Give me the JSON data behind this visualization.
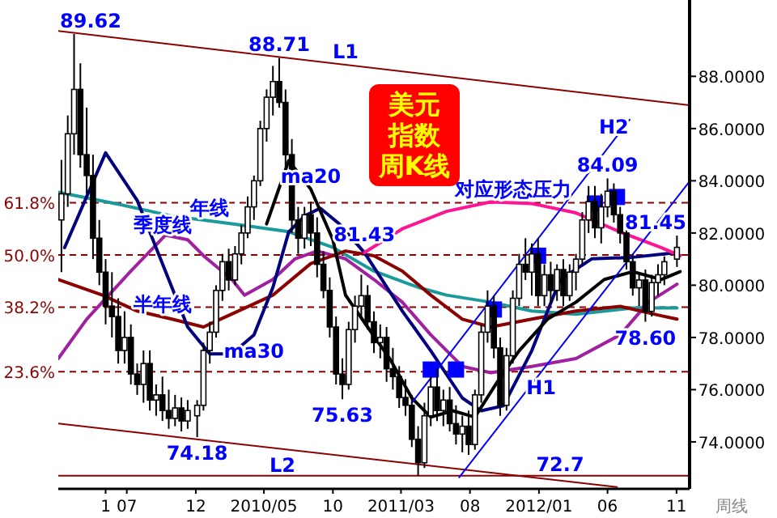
{
  "chart_data": {
    "type": "candlestick",
    "title": "美元指数周K线",
    "xlabel": "周线",
    "x": [
      "2009-02-06",
      "2009-02-20",
      "2009-03-06",
      "2009-03-20",
      "2009-04-03",
      "2009-04-17",
      "2009-05-01",
      "2009-05-15",
      "2009-05-29",
      "2009-06-12",
      "2009-06-26",
      "2009-07-10",
      "2009-07-24",
      "2009-08-07",
      "2009-08-21",
      "2009-09-04",
      "2009-09-18",
      "2009-10-02",
      "2009-10-16",
      "2009-10-30",
      "2009-11-13",
      "2009-12-04",
      "2009-12-18",
      "2010-01-01",
      "2010-01-15",
      "2010-01-29",
      "2010-02-12",
      "2010-02-26",
      "2010-03-12",
      "2010-03-26",
      "2010-04-09",
      "2010-04-23",
      "2010-05-07",
      "2010-05-21",
      "2010-06-04",
      "2010-06-18",
      "2010-07-02",
      "2010-07-16",
      "2010-07-30",
      "2010-08-13",
      "2010-08-27",
      "2010-09-10",
      "2010-09-24",
      "2010-10-08",
      "2010-10-22",
      "2010-11-05",
      "2010-11-19",
      "2010-12-03",
      "2010-12-17",
      "2010-12-31",
      "2011-01-14",
      "2011-01-28",
      "2011-02-11",
      "2011-02-25",
      "2011-03-11",
      "2011-03-25",
      "2011-04-08",
      "2011-04-22",
      "2011-05-06",
      "2011-05-20",
      "2011-06-03",
      "2011-06-17",
      "2011-07-01",
      "2011-07-15",
      "2011-07-29",
      "2011-08-12",
      "2011-08-26",
      "2011-09-09",
      "2011-09-23",
      "2011-10-07",
      "2011-10-21",
      "2011-11-04",
      "2011-11-18",
      "2011-12-02",
      "2011-12-16",
      "2011-12-30",
      "2012-01-13",
      "2012-01-27",
      "2012-02-10",
      "2012-02-24",
      "2012-03-09",
      "2012-03-23",
      "2012-04-06",
      "2012-04-20",
      "2012-05-04",
      "2012-05-18",
      "2012-06-01",
      "2012-06-15",
      "2012-06-29",
      "2012-07-13",
      "2012-07-27",
      "2012-08-10",
      "2012-08-24",
      "2012-09-07",
      "2012-09-21",
      "2012-10-05",
      "2012-11-02"
    ],
    "ohlc": [
      [
        82.5,
        84.8,
        80.5,
        83.5
      ],
      [
        83.5,
        86.5,
        83,
        85.8
      ],
      [
        85.8,
        89.62,
        85,
        87.5
      ],
      [
        87.5,
        88.5,
        84.5,
        85
      ],
      [
        85,
        86.8,
        83.5,
        84.2
      ],
      [
        84.2,
        85,
        81,
        81.8
      ],
      [
        81.8,
        82.5,
        80,
        80.5
      ],
      [
        80.5,
        81,
        78.5,
        79.2
      ],
      [
        79.2,
        80.5,
        78,
        78.8
      ],
      [
        78.8,
        79.5,
        77,
        77.5
      ],
      [
        77.5,
        79,
        77,
        78
      ],
      [
        78,
        78.5,
        76.2,
        76.6
      ],
      [
        76.6,
        77,
        75.8,
        76.2
      ],
      [
        76.2,
        77.5,
        75.5,
        77
      ],
      [
        77,
        77.5,
        75.2,
        75.6
      ],
      [
        75.6,
        76.2,
        75,
        75.8
      ],
      [
        75.8,
        76.5,
        74.8,
        75.2
      ],
      [
        75.2,
        76,
        74.5,
        74.9
      ],
      [
        74.9,
        75.8,
        74.6,
        75.3
      ],
      [
        75.3,
        75.7,
        74.4,
        74.8
      ],
      [
        74.8,
        75.6,
        74.5,
        75.2
      ],
      [
        75,
        75.6,
        74.18,
        75.4
      ],
      [
        75.4,
        77.8,
        75.2,
        77.5
      ],
      [
        77.5,
        78.6,
        77,
        78.2
      ],
      [
        78.2,
        80,
        78,
        79.8
      ],
      [
        79.8,
        81.2,
        79.4,
        80.9
      ],
      [
        80.9,
        81.4,
        79.8,
        80.2
      ],
      [
        80.2,
        81.5,
        80,
        81.2
      ],
      [
        81.2,
        82.3,
        80.8,
        82
      ],
      [
        82,
        83.4,
        81.8,
        83
      ],
      [
        83,
        84.2,
        82.5,
        84
      ],
      [
        84,
        86.3,
        83.8,
        86
      ],
      [
        86,
        87.5,
        85.5,
        87.2
      ],
      [
        87.2,
        88.4,
        86.5,
        87.8
      ],
      [
        87.8,
        88.71,
        86.8,
        87
      ],
      [
        87,
        87.5,
        84.5,
        85
      ],
      [
        85,
        85.6,
        82,
        82.5
      ],
      [
        82.5,
        83,
        81.2,
        81.8
      ],
      [
        81.8,
        83,
        81.4,
        82.7
      ],
      [
        82.7,
        83.2,
        81.5,
        82
      ],
      [
        82,
        82.6,
        80.3,
        80.8
      ],
      [
        80.8,
        81.3,
        79.5,
        79.8
      ],
      [
        79.8,
        80.3,
        78,
        78.4
      ],
      [
        78.4,
        78.8,
        76.2,
        76.6
      ],
      [
        76.6,
        77.2,
        75.63,
        76.2
      ],
      [
        76.2,
        78.6,
        76,
        78.3
      ],
      [
        78.3,
        79.6,
        77.8,
        79.2
      ],
      [
        79.2,
        80.4,
        78.8,
        79.6
      ],
      [
        79.6,
        80,
        78.3,
        78.6
      ],
      [
        78.6,
        79,
        77.4,
        77.8
      ],
      [
        77.8,
        78.5,
        77.2,
        78
      ],
      [
        78,
        78.4,
        76.3,
        76.8
      ],
      [
        76.8,
        77.6,
        76,
        76.5
      ],
      [
        76.5,
        76.9,
        75.3,
        75.7
      ],
      [
        75.7,
        76.4,
        75,
        75.4
      ],
      [
        75.4,
        75.8,
        73.8,
        74.1
      ],
      [
        74.1,
        74.6,
        72.7,
        73.2
      ],
      [
        73.2,
        75.5,
        73,
        75
      ],
      [
        75,
        76.5,
        74.6,
        76.1
      ],
      [
        76.1,
        76.8,
        74.8,
        75.2
      ],
      [
        75.2,
        76,
        74.6,
        75.6
      ],
      [
        75.6,
        76.1,
        74.4,
        74.7
      ],
      [
        74.7,
        75.4,
        73.9,
        74.3
      ],
      [
        74.3,
        75,
        73.6,
        74.6
      ],
      [
        74.6,
        75.2,
        73.5,
        73.9
      ],
      [
        73.9,
        76,
        73.7,
        75.8
      ],
      [
        75.8,
        78.5,
        75.5,
        78.2
      ],
      [
        78.2,
        79.8,
        77.8,
        79.2
      ],
      [
        79.2,
        79.6,
        77.2,
        77.6
      ],
      [
        77.6,
        78,
        75,
        75.4
      ],
      [
        75.4,
        77.6,
        75.2,
        77.3
      ],
      [
        77.3,
        79.8,
        77,
        79.5
      ],
      [
        79.5,
        81.2,
        79.2,
        80.8
      ],
      [
        80.8,
        81.8,
        80.2,
        80.5
      ],
      [
        80.5,
        81.6,
        79.6,
        81.2
      ],
      [
        81.2,
        81.8,
        79.2,
        79.6
      ],
      [
        79.6,
        80.8,
        79.2,
        80.4
      ],
      [
        80.4,
        80.9,
        79.3,
        79.8
      ],
      [
        79.8,
        80.8,
        79.4,
        80.6
      ],
      [
        80.6,
        81,
        79.2,
        79.6
      ],
      [
        79.6,
        80.8,
        79.4,
        80.5
      ],
      [
        80.5,
        81.2,
        79.8,
        81
      ],
      [
        81,
        82.8,
        80.8,
        82.5
      ],
      [
        82.5,
        83.8,
        82,
        83.2
      ],
      [
        83.2,
        83.8,
        81.8,
        82.2
      ],
      [
        82.2,
        83.5,
        81.6,
        83
      ],
      [
        83,
        84.09,
        82.6,
        83.6
      ],
      [
        83.6,
        83.9,
        82.4,
        82.7
      ],
      [
        82.7,
        83,
        81.6,
        82
      ],
      [
        82,
        82.3,
        80.6,
        80.9
      ],
      [
        80.9,
        81.2,
        79.6,
        79.9
      ],
      [
        79.9,
        80.5,
        79.2,
        80.2
      ],
      [
        80.2,
        80.6,
        78.6,
        79
      ],
      [
        79,
        80.4,
        78.8,
        80.1
      ],
      [
        80.1,
        80.8,
        79.6,
        80.4
      ],
      [
        80.4,
        81.1,
        80,
        80.9
      ],
      [
        81,
        81.9,
        80.7,
        81.45
      ]
    ],
    "series": [
      {
        "type": "line",
        "color": "#1a9a9a",
        "x": [
          "2009-01-30",
          "2009-06-05",
          "2009-10-09",
          "2010-02-19",
          "2010-06-25",
          "2010-10-01",
          "2010-12-31",
          "2011-04-08",
          "2011-06-10",
          "2011-09-16",
          "2011-12-16",
          "2012-03-23",
          "2012-07-27",
          "2012-11-02"
        ],
        "values": [
          83.56,
          83.13,
          82.65,
          82.35,
          82.05,
          81.45,
          80.54,
          79.92,
          79.62,
          79.35,
          79.01,
          78.89,
          79.13,
          79.13
        ]
      },
      {
        "type": "line",
        "color": "#a0209f",
        "x": [
          "2009-01-30",
          "2009-04-03",
          "2009-07-10",
          "2009-09-25",
          "2009-11-13",
          "2009-12-18",
          "2010-02-19",
          "2010-03-19",
          "2010-05-21",
          "2010-07-09",
          "2010-08-27",
          "2010-10-29",
          "2010-12-31",
          "2011-03-04",
          "2011-05-06",
          "2011-07-15",
          "2011-09-16",
          "2011-12-16",
          "2012-03-23",
          "2012-06-29",
          "2012-08-31",
          "2012-11-02"
        ],
        "values": [
          77.19,
          78.7,
          80.54,
          81.92,
          81.74,
          81.13,
          80.22,
          79.62,
          80.22,
          81.01,
          81.31,
          81.01,
          80.22,
          79.35,
          78.1,
          76.89,
          76.65,
          76.89,
          77.19,
          78.1,
          79.35,
          80.04
        ]
      },
      {
        "type": "line",
        "color": "#8b0000",
        "x": [
          "2009-01-30",
          "2009-05-08",
          "2009-07-24",
          "2009-10-09",
          "2009-12-18",
          "2010-03-05",
          "2010-05-21",
          "2010-08-13",
          "2010-10-29",
          "2010-12-31",
          "2011-03-04",
          "2011-05-06",
          "2011-07-15",
          "2011-09-16",
          "2011-12-16",
          "2012-03-23",
          "2012-06-29",
          "2012-09-28",
          "2012-11-02"
        ],
        "values": [
          80.22,
          79.62,
          79.01,
          78.7,
          78.4,
          79.01,
          79.62,
          80.83,
          81.31,
          81.13,
          80.54,
          79.62,
          78.7,
          78.4,
          78.7,
          79.01,
          79.19,
          78.83,
          78.7
        ]
      },
      {
        "type": "line",
        "color": "#000080",
        "x": [
          "2009-02-13",
          "2009-05-15",
          "2009-07-24",
          "2009-09-11",
          "2009-11-13",
          "2010-01-01",
          "2010-02-19",
          "2010-04-09",
          "2010-05-21",
          "2010-06-25",
          "2010-07-30",
          "2010-09-03",
          "2010-10-15",
          "2010-12-10",
          "2011-03-04",
          "2011-05-06",
          "2011-07-15",
          "2011-08-26",
          "2011-10-14",
          "2011-12-16",
          "2012-02-17",
          "2012-04-27",
          "2012-07-27",
          "2012-11-02"
        ],
        "values": [
          81.44,
          85.07,
          83.25,
          81.13,
          78.4,
          77.37,
          77.37,
          78.1,
          79.92,
          82.04,
          82.65,
          82.95,
          82.35,
          81.25,
          79.01,
          77.49,
          75.68,
          75.19,
          75.38,
          77.49,
          80.22,
          81.01,
          81.07,
          81.25
        ]
      },
      {
        "type": "line",
        "color": "#000000",
        "x": [
          "2010-05-07",
          "2010-06-25",
          "2010-08-13",
          "2010-10-01",
          "2010-10-29",
          "2010-12-17",
          "2011-02-04",
          "2011-03-25",
          "2011-05-06",
          "2011-06-24",
          "2011-08-12",
          "2011-09-30",
          "2011-11-18",
          "2012-01-20",
          "2012-03-23",
          "2012-05-25",
          "2012-07-27",
          "2012-09-28",
          "2012-11-09"
        ],
        "values": [
          82.35,
          84.77,
          83.68,
          81.74,
          79.62,
          78.4,
          77.19,
          75.68,
          74.95,
          75.19,
          74.95,
          76.28,
          77.49,
          78.7,
          79.35,
          80.22,
          80.52,
          80.22,
          80.52
        ]
      },
      {
        "type": "line",
        "color": "#ff1493",
        "x": [
          "2010-12-10",
          "2011-03-04",
          "2011-06-10",
          "2011-09-16",
          "2011-12-16",
          "2012-03-23",
          "2012-06-29",
          "2012-09-28",
          "2012-11-09"
        ],
        "values": [
          81.25,
          82.16,
          82.83,
          83.19,
          83.13,
          82.77,
          82.04,
          81.44,
          81.13
        ]
      },
      {
        "type": "line",
        "color": "#8b0000",
        "x": [
          "2009-01-30",
          "2012-11-30"
        ],
        "values": [
          89.74,
          86.89
        ]
      },
      {
        "type": "line",
        "color": "#8b0000",
        "x": [
          "2009-01-30",
          "2012-06-22"
        ],
        "values": [
          74.7,
          72.27
        ]
      },
      {
        "type": "line",
        "color": "#0000ff",
        "x": [
          "2011-07-08",
          "2012-11-30"
        ],
        "values": [
          72.64,
          83.98
        ]
      },
      {
        "type": "line",
        "color": "#0000ff",
        "x": [
          "2011-03-25",
          "2012-07-20"
        ],
        "values": [
          75.5,
          86.34
        ]
      },
      {
        "type": "scatter",
        "color": "#0000ff",
        "marker": "square",
        "x": [
          "2011-05-06",
          "2011-07-01",
          "2011-09-23",
          "2011-12-30",
          "2012-05-04",
          "2012-06-22"
        ],
        "values": [
          76.77,
          76.77,
          79.07,
          81.13,
          83.13,
          83.38
        ]
      }
    ],
    "ref_lines": [
      {
        "axis": "y",
        "value": 83.16,
        "color": "#8b0000",
        "line_style": "dashed"
      },
      {
        "axis": "y",
        "value": 81.16,
        "color": "#8b0000",
        "line_style": "dashed"
      },
      {
        "axis": "y",
        "value": 79.16,
        "color": "#8b0000",
        "line_style": "dashed"
      },
      {
        "axis": "y",
        "value": 76.69,
        "color": "#8b0000",
        "line_style": "dashed"
      },
      {
        "axis": "y",
        "value": 72.7,
        "label": "72.7",
        "color": "#8b0000",
        "line_style": "solid"
      }
    ],
    "annotations": [
      {
        "text": "89.62",
        "x": "2009-03-06",
        "y": 89.62
      },
      {
        "text": "88.71",
        "x": "2010-06-04",
        "y": 88.71
      },
      {
        "text": "74.18",
        "x": "2009-12-04",
        "y": 74.18
      },
      {
        "text": "75.63",
        "x": "2010-10-22",
        "y": 75.63
      },
      {
        "text": "84.09",
        "x": "2012-06-01",
        "y": 84.09
      },
      {
        "text": "78.60",
        "x": "2012-08-24",
        "y": 78.6
      },
      {
        "text": "81.45",
        "x": "2012-11-02",
        "y": 81.45
      },
      {
        "text": "81.43",
        "x": "2010-12-10",
        "y": 81.43
      },
      {
        "text": "61.8%",
        "x": "2009-01-30",
        "y": 83.16
      },
      {
        "text": "50.0%",
        "x": "2009-01-30",
        "y": 81.16
      },
      {
        "text": "38.2%",
        "x": "2009-01-30",
        "y": 79.16
      },
      {
        "text": "23.6%",
        "x": "2009-01-30",
        "y": 76.69
      },
      {
        "text": "年线",
        "x": "2010-01-01",
        "y": 82.46
      },
      {
        "text": "季度线",
        "x": "2009-09-18",
        "y": 81.8
      },
      {
        "text": "半年线",
        "x": "2009-09-18",
        "y": 78.78
      },
      {
        "text": "ma20",
        "x": "2010-08-13",
        "y": 83.68
      },
      {
        "text": "ma30",
        "x": "2010-04-09",
        "y": 78.1
      },
      {
        "text": "L1",
        "x": "2010-10-29",
        "y": 88.44
      },
      {
        "text": "L2",
        "x": "2010-06-11",
        "y": 73.73
      },
      {
        "text": "H1",
        "x": "2012-01-06",
        "y": 76.68
      },
      {
        "text": "H2",
        "x": "2012-06-15",
        "y": 85.55
      },
      {
        "text": "对应形态压力",
        "x": "2011-11-04",
        "y": 83.16
      }
    ],
    "xlim": [
      "2009-01-30",
      "2012-11-30"
    ],
    "ylim": [
      72.2,
      90.8
    ],
    "xticks": [
      {
        "value": "2009-05-15",
        "label": "1"
      },
      {
        "value": "2009-07",
        "label": "07"
      },
      {
        "value": "2009-12",
        "label": "12"
      },
      {
        "value": "2010-05",
        "label": "2010/05"
      },
      {
        "value": "2010-10",
        "label": "10"
      },
      {
        "value": "2011-03",
        "label": "2011/03"
      },
      {
        "value": "2011-08",
        "label": "08"
      },
      {
        "value": "2012-01",
        "label": "2012/01"
      },
      {
        "value": "2012-06",
        "label": "06"
      },
      {
        "value": "2012-11",
        "label": "11"
      }
    ],
    "yticks": [
      {
        "value": 74,
        "label": "74.0000"
      },
      {
        "value": 76,
        "label": "76.0000"
      },
      {
        "value": 78,
        "label": "78.0000"
      },
      {
        "value": 80,
        "label": "80.0000"
      },
      {
        "value": 82,
        "label": "82.0000"
      },
      {
        "value": 84,
        "label": "84.0000"
      },
      {
        "value": 86,
        "label": "86.0000"
      },
      {
        "value": 88,
        "label": "88.0000"
      }
    ]
  }
}
